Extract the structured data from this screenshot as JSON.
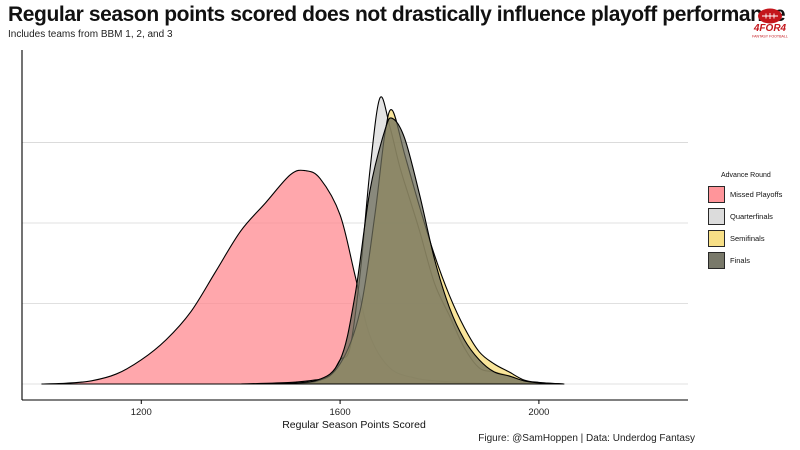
{
  "header": {
    "title": "Regular season points scored does not drastically influence playoff performance",
    "subtitle": "Includes teams from BBM 1, 2, and 3",
    "logo_text": "4FOR4",
    "logo_subtext": "FANTASY FOOTBALL"
  },
  "caption": "Figure: @SamHoppen | Data: Underdog Fantasy",
  "colors": {
    "brand": "#c4161c",
    "missed": "#ff8a90",
    "quarterfinals": "#d9d9d9",
    "semifinals": "#f7dc7a",
    "finals": "#6b6b5a"
  },
  "chart_data": {
    "type": "area",
    "subtype": "density",
    "title": "Regular season points scored does not drastically influence playoff performance",
    "subtitle": "Includes teams from BBM 1, 2, and 3",
    "xlabel": "Regular Season Points Scored",
    "ylabel": "",
    "xlim": [
      960,
      2300
    ],
    "ylim": [
      0,
      0.0078
    ],
    "x_ticks": [
      1200,
      1600,
      2000
    ],
    "y_gridlines": [
      0,
      0.002,
      0.004,
      0.006
    ],
    "y_tick_labels_shown": false,
    "legend": {
      "title": "Advance Round",
      "position": "right"
    },
    "series": [
      {
        "name": "Missed Playoffs",
        "color": "#ff8a90",
        "x": [
          1000,
          1050,
          1100,
          1150,
          1200,
          1250,
          1300,
          1350,
          1400,
          1450,
          1500,
          1530,
          1560,
          1600,
          1630,
          1660,
          1700,
          1750,
          1800,
          1850,
          1900,
          1950,
          2000
        ],
        "y": [
          0,
          2e-05,
          8e-05,
          0.00025,
          0.0006,
          0.0011,
          0.0018,
          0.0028,
          0.0038,
          0.0045,
          0.0052,
          0.0053,
          0.0051,
          0.0042,
          0.0027,
          0.0012,
          0.0004,
          0.00015,
          7e-05,
          4e-05,
          2e-05,
          1e-05,
          0
        ]
      },
      {
        "name": "Quarterfinals",
        "color": "#d9d9d9",
        "x": [
          1400,
          1500,
          1550,
          1580,
          1600,
          1620,
          1640,
          1660,
          1680,
          1700,
          1720,
          1740,
          1760,
          1790,
          1820,
          1850,
          1880,
          1910,
          1940,
          1970,
          2000,
          2050
        ],
        "y": [
          0,
          4e-05,
          0.0001,
          0.0002,
          0.0006,
          0.0009,
          0.0027,
          0.0053,
          0.0071,
          0.0064,
          0.0054,
          0.0046,
          0.0038,
          0.0025,
          0.0017,
          0.0009,
          0.0004,
          0.0003,
          0.0002,
          8e-05,
          3e-05,
          0
        ]
      },
      {
        "name": "Semifinals",
        "color": "#f7dc7a",
        "x": [
          1450,
          1550,
          1600,
          1640,
          1670,
          1690,
          1705,
          1730,
          1760,
          1790,
          1820,
          1850,
          1880,
          1910,
          1940,
          1970,
          2000,
          2050
        ],
        "y": [
          0,
          6e-05,
          0.0005,
          0.0018,
          0.0042,
          0.0062,
          0.0068,
          0.0057,
          0.0044,
          0.0032,
          0.0022,
          0.0014,
          0.0008,
          0.0005,
          0.0003,
          0.0001,
          4e-05,
          0
        ]
      },
      {
        "name": "Finals",
        "color": "#6b6b5a",
        "x": [
          1450,
          1550,
          1600,
          1630,
          1660,
          1690,
          1705,
          1730,
          1760,
          1790,
          1820,
          1850,
          1880,
          1910,
          1940,
          1970,
          2000,
          2050
        ],
        "y": [
          0,
          8e-05,
          0.0006,
          0.0022,
          0.0048,
          0.0063,
          0.0066,
          0.0061,
          0.0047,
          0.0031,
          0.0019,
          0.0011,
          0.0006,
          0.0003,
          0.0002,
          8e-05,
          3e-05,
          0
        ]
      }
    ]
  }
}
